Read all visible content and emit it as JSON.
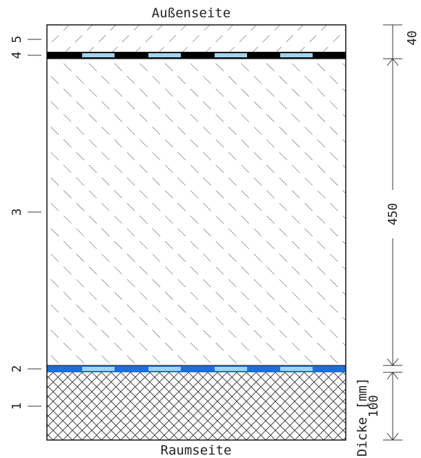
{
  "labels": {
    "outside": "Außenseite",
    "inside": "Raumseite",
    "thickness_axis": "Dicke [mm]"
  },
  "layers": [
    {
      "number": "1",
      "hatch": "cross"
    },
    {
      "number": "2",
      "hatch": "foil-blue"
    },
    {
      "number": "3",
      "hatch": "diagonal-back"
    },
    {
      "number": "4",
      "hatch": "foil-black"
    },
    {
      "number": "5",
      "hatch": "diagonal-forward"
    }
  ],
  "dimensions": [
    {
      "value": "40"
    },
    {
      "value": "450"
    },
    {
      "value": "100"
    }
  ],
  "colors": {
    "foil_black": "#000000",
    "foil_blue": "#1a6fdc",
    "foil_light": "#9fd3f2",
    "line": "#333333"
  }
}
